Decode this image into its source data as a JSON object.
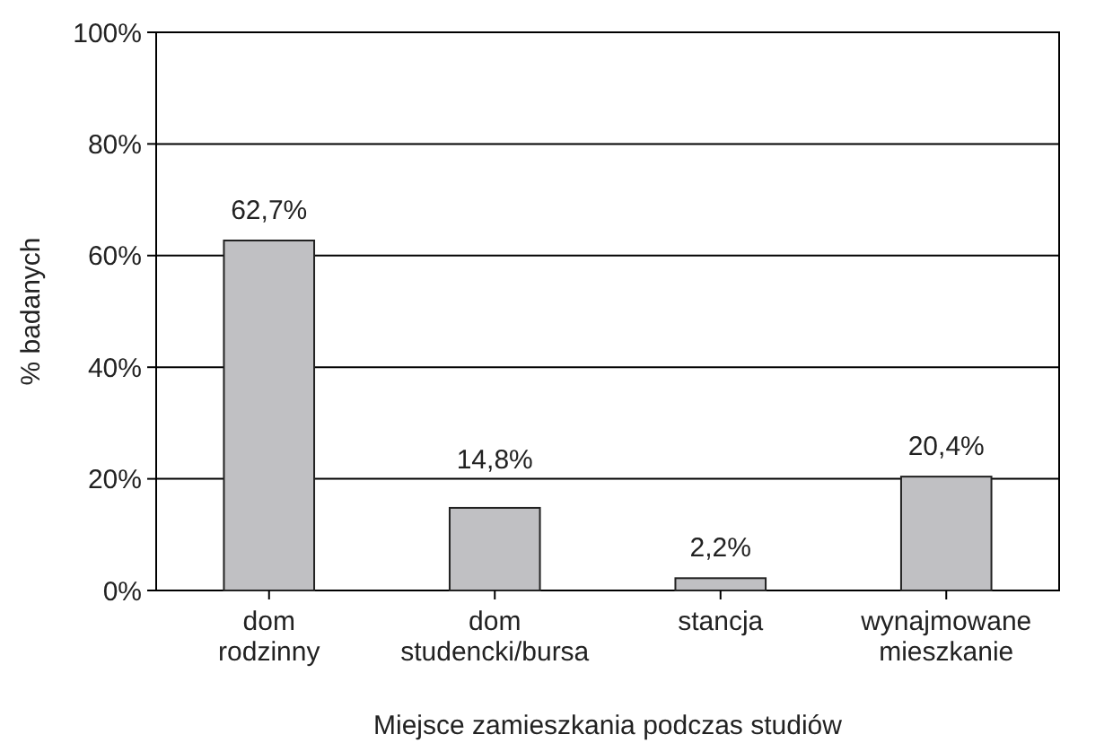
{
  "chart_data": {
    "type": "bar",
    "xlabel": "Miejsce zamieszkania podczas studiów",
    "ylabel": "% badanych",
    "categories": [
      "dom rodzinny",
      "dom studencki/bursa",
      "stancja",
      "wynajmowane mieszkanie"
    ],
    "values": [
      62.7,
      14.8,
      2.2,
      20.4
    ],
    "value_labels": [
      "62,7%",
      "14,8%",
      "2,2%",
      "20,4%"
    ],
    "color": "#c0c0c3",
    "ylim": [
      0,
      100
    ],
    "yticks": [
      {
        "value": 0,
        "label": "0%"
      },
      {
        "value": 20,
        "label": "20%"
      },
      {
        "value": 40,
        "label": "40%"
      },
      {
        "value": 60,
        "label": "60%"
      },
      {
        "value": 80,
        "label": "80%"
      },
      {
        "value": 100,
        "label": "100%"
      }
    ],
    "grid": "y"
  }
}
